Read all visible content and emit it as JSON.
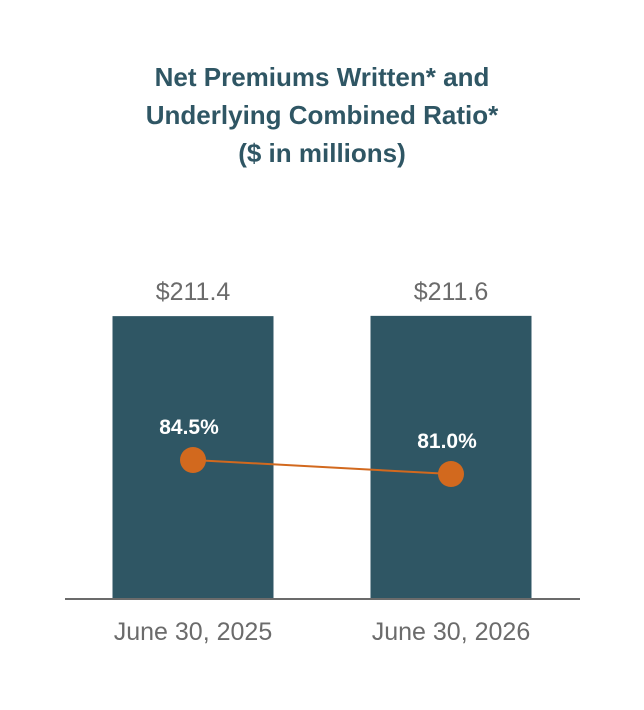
{
  "title": {
    "line1": "Net Premiums Written* and",
    "line2": "Underlying Combined Ratio*",
    "line3": "($ in millions)"
  },
  "chart_data": {
    "type": "bar",
    "categories": [
      "June 30, 2025",
      "June 30, 2026"
    ],
    "series": [
      {
        "type": "bar",
        "values": [
          211.4,
          211.6
        ],
        "value_labels": [
          "$211.4",
          "$211.6"
        ],
        "color": "#2f5664"
      },
      {
        "type": "line",
        "values": [
          84.5,
          81.0
        ],
        "value_labels": [
          "84.5%",
          "81.0%"
        ],
        "color": "#d2691e"
      }
    ],
    "legend": "none",
    "grid": false
  }
}
